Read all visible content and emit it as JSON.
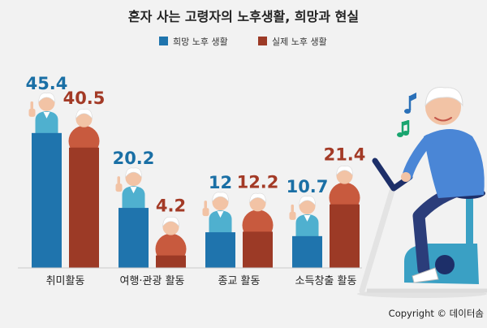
{
  "chart_data": {
    "type": "bar",
    "title": "혼자 사는 고령자의 노후생활, 희망과 현실",
    "categories": [
      "취미활동",
      "여행·관광 활동",
      "종교 활동",
      "소득창출 활동"
    ],
    "series": [
      {
        "name": "희망 노후 생활",
        "values": [
          45.4,
          20.2,
          12,
          10.7
        ],
        "labels": [
          "45.4",
          "20.2",
          "12",
          "10.7"
        ],
        "color": "#1f74ad"
      },
      {
        "name": "실제 노후 생활",
        "values": [
          40.5,
          4.2,
          12.2,
          21.4
        ],
        "labels": [
          "40.5",
          "4.2",
          "12.2",
          "21.4"
        ],
        "color": "#9c3a26"
      }
    ],
    "ylim": [
      0,
      50
    ],
    "grid": false,
    "legend_position": "top-center"
  },
  "copyright": "Copyright © 데이터솜",
  "colors": {
    "background": "#f2f2f2",
    "hope_bar": "#1f74ad",
    "hope_label": "#1a6fa5",
    "real_bar": "#9c3a26",
    "real_label": "#a33a26",
    "elder_shirt": "#4fb0cf",
    "elder_sweater": "#c85a3e"
  },
  "icons": {
    "elder_hope": "thumbs-up-elder-icon",
    "elder_real": "elder-figure-icon",
    "cyclist": "elderly-cyclist-illustration",
    "music": "music-note-icon"
  }
}
